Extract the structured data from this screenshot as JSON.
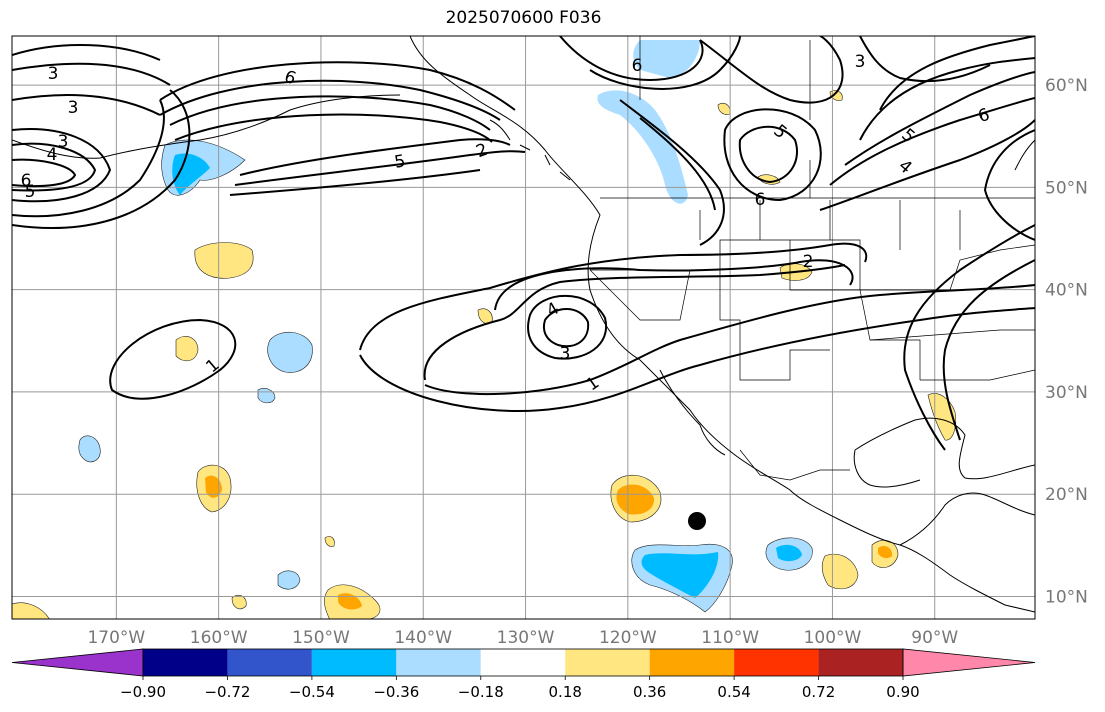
{
  "title": "2025070600 F036",
  "lat_labels": [
    "60°N",
    "50°N",
    "40°N",
    "30°N",
    "20°N",
    "10°N"
  ],
  "lon_labels": [
    "170°W",
    "160°W",
    "150°W",
    "140°W",
    "130°W",
    "120°W",
    "110°W",
    "100°W",
    "90°W"
  ],
  "contour_labels": [
    "1",
    "1",
    "2",
    "2",
    "3",
    "3",
    "3",
    "3",
    "3",
    "4",
    "4",
    "4",
    "5",
    "5",
    "5",
    "5",
    "6",
    "6",
    "6",
    "6",
    "6"
  ],
  "colorbar": {
    "colors": [
      "#9933cc",
      "#000088",
      "#3355cc",
      "#00bbff",
      "#aaddff",
      "#ffffff",
      "#ffe680",
      "#ffa500",
      "#ff3300",
      "#aa2222",
      "#ff88aa"
    ],
    "tick_labels": [
      "−0.90",
      "−0.72",
      "−0.54",
      "−0.36",
      "−0.18",
      "0.18",
      "0.36",
      "0.54",
      "0.72",
      "0.90"
    ]
  },
  "legend_markers": []
}
